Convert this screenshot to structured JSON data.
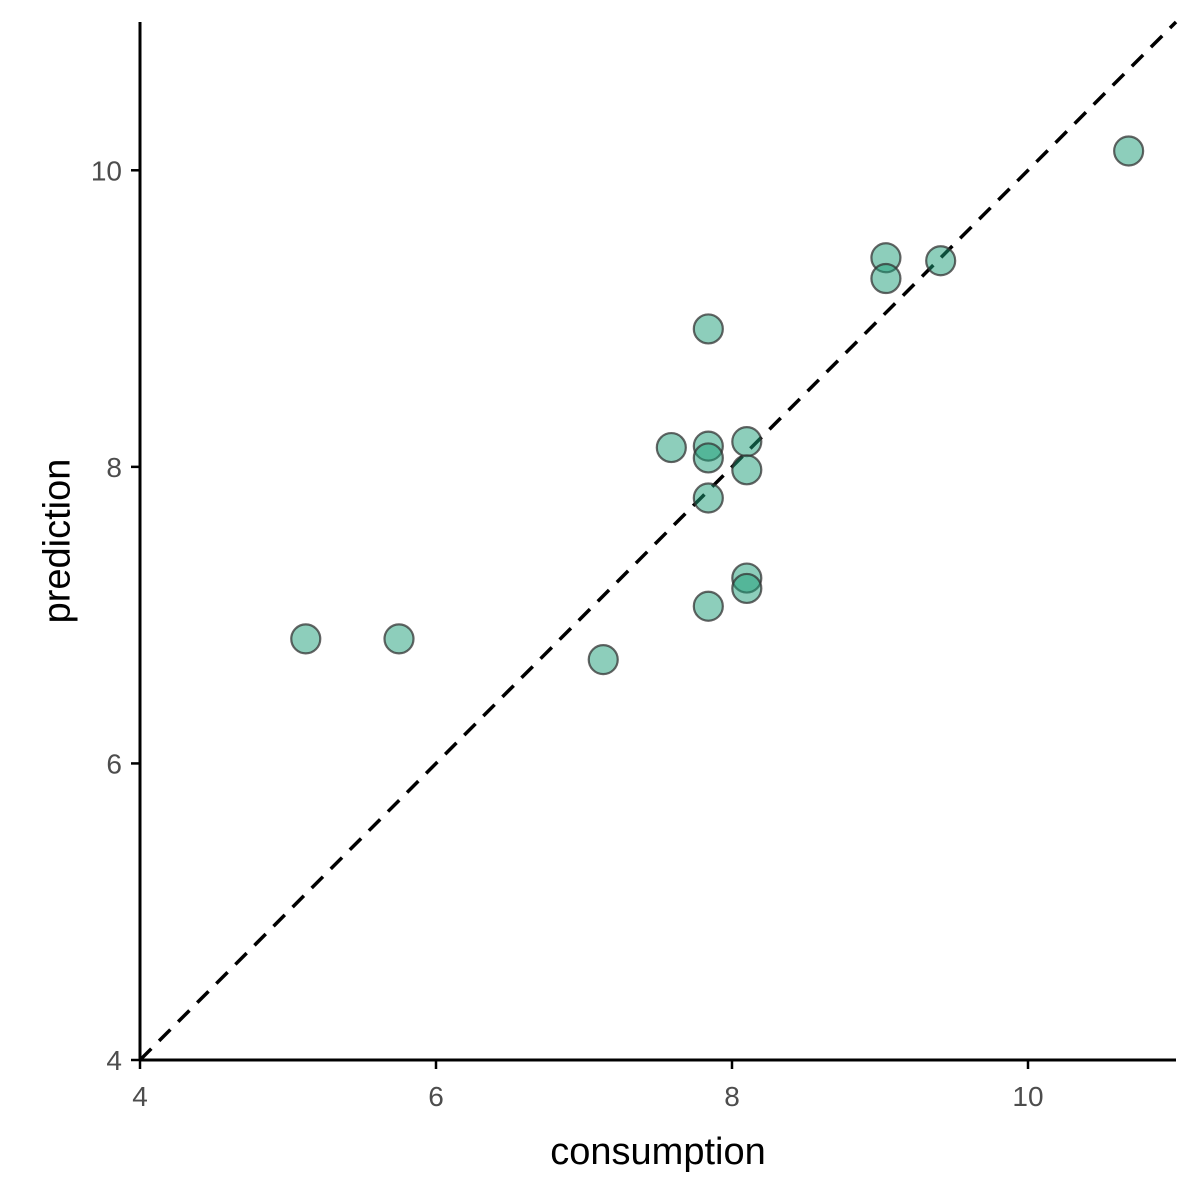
{
  "chart_data": {
    "type": "scatter",
    "xlabel": "consumption",
    "ylabel": "prediction",
    "xlim": [
      4,
      11
    ],
    "ylim": [
      4,
      11
    ],
    "x_ticks": [
      4,
      6,
      8,
      10
    ],
    "y_ticks": [
      4,
      6,
      8,
      10
    ],
    "x_tick_labels": [
      "4",
      "6",
      "8",
      "10"
    ],
    "y_tick_labels": [
      "4",
      "6",
      "8",
      "10"
    ],
    "grid": false,
    "reference_line": {
      "style": "dashed",
      "color": "#000000",
      "slope": 1,
      "intercept": 0
    },
    "point_color": "#1b9e77",
    "point_outline": "#333333",
    "points": [
      {
        "x": 5.12,
        "y": 6.84
      },
      {
        "x": 5.75,
        "y": 6.84
      },
      {
        "x": 7.13,
        "y": 6.7
      },
      {
        "x": 7.59,
        "y": 8.13
      },
      {
        "x": 7.84,
        "y": 8.14
      },
      {
        "x": 7.84,
        "y": 8.06
      },
      {
        "x": 7.84,
        "y": 8.93
      },
      {
        "x": 7.84,
        "y": 7.79
      },
      {
        "x": 7.84,
        "y": 7.06
      },
      {
        "x": 8.1,
        "y": 8.17
      },
      {
        "x": 8.1,
        "y": 7.98
      },
      {
        "x": 8.1,
        "y": 7.25
      },
      {
        "x": 8.1,
        "y": 7.18
      },
      {
        "x": 9.04,
        "y": 9.41
      },
      {
        "x": 9.04,
        "y": 9.27
      },
      {
        "x": 9.41,
        "y": 9.39
      },
      {
        "x": 10.68,
        "y": 10.13
      }
    ]
  }
}
